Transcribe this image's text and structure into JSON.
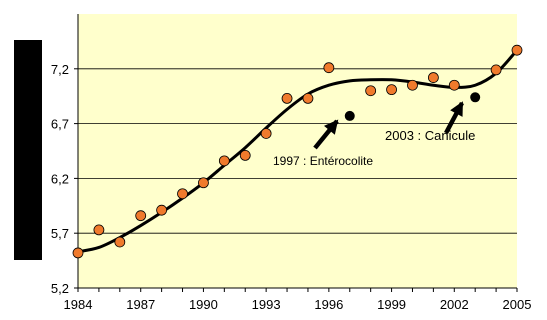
{
  "chart_data": {
    "type": "scatter",
    "xlim": [
      1984,
      2005
    ],
    "ylim": [
      5.2,
      7.7
    ],
    "x_ticks": [
      "1984",
      "1987",
      "1990",
      "1993",
      "1996",
      "1999",
      "2002",
      "2005"
    ],
    "y_ticks": [
      "5,2",
      "5,7",
      "6,2",
      "6,7",
      "7,2"
    ],
    "x_tick_values": [
      1984,
      1987,
      1990,
      1993,
      1996,
      1999,
      2002,
      2005
    ],
    "y_tick_values": [
      5.2,
      5.7,
      6.2,
      6.7,
      7.2
    ],
    "grid": "horizontal",
    "plot_background": "#ffffcc",
    "point_color": "#f07a2c",
    "outlier_color": "#000000",
    "line_color": "#000000",
    "points": [
      {
        "x": 1984,
        "y": 5.52
      },
      {
        "x": 1985,
        "y": 5.73
      },
      {
        "x": 1986,
        "y": 5.62
      },
      {
        "x": 1987,
        "y": 5.86
      },
      {
        "x": 1988,
        "y": 5.91
      },
      {
        "x": 1989,
        "y": 6.06
      },
      {
        "x": 1990,
        "y": 6.16
      },
      {
        "x": 1991,
        "y": 6.36
      },
      {
        "x": 1992,
        "y": 6.41
      },
      {
        "x": 1993,
        "y": 6.61
      },
      {
        "x": 1994,
        "y": 6.93
      },
      {
        "x": 1995,
        "y": 6.93
      },
      {
        "x": 1996,
        "y": 7.21
      },
      {
        "x": 1998,
        "y": 7.0
      },
      {
        "x": 1999,
        "y": 7.01
      },
      {
        "x": 2000,
        "y": 7.05
      },
      {
        "x": 2001,
        "y": 7.12
      },
      {
        "x": 2002,
        "y": 7.05
      },
      {
        "x": 2004,
        "y": 7.19
      },
      {
        "x": 2005,
        "y": 7.37
      }
    ],
    "outliers": [
      {
        "x": 1997,
        "y": 6.77
      },
      {
        "x": 2003,
        "y": 6.94
      }
    ],
    "trend": [
      {
        "x": 1984,
        "y": 5.53
      },
      {
        "x": 1985,
        "y": 5.57
      },
      {
        "x": 1986,
        "y": 5.66
      },
      {
        "x": 1987,
        "y": 5.77
      },
      {
        "x": 1988,
        "y": 5.89
      },
      {
        "x": 1989,
        "y": 6.02
      },
      {
        "x": 1990,
        "y": 6.16
      },
      {
        "x": 1991,
        "y": 6.32
      },
      {
        "x": 1992,
        "y": 6.48
      },
      {
        "x": 1993,
        "y": 6.66
      },
      {
        "x": 1994,
        "y": 6.83
      },
      {
        "x": 1995,
        "y": 6.97
      },
      {
        "x": 1996,
        "y": 7.05
      },
      {
        "x": 1997,
        "y": 7.09
      },
      {
        "x": 1998,
        "y": 7.1
      },
      {
        "x": 1999,
        "y": 7.1
      },
      {
        "x": 2000,
        "y": 7.08
      },
      {
        "x": 2001,
        "y": 7.05
      },
      {
        "x": 2002,
        "y": 7.03
      },
      {
        "x": 2003,
        "y": 7.05
      },
      {
        "x": 2004,
        "y": 7.16
      },
      {
        "x": 2005,
        "y": 7.37
      }
    ],
    "annotations": [
      {
        "text": "1997 : Entérocolite",
        "x": 1997,
        "y": 6.77
      },
      {
        "text": "2003 : Canicule",
        "x": 2003,
        "y": 6.94
      }
    ]
  }
}
